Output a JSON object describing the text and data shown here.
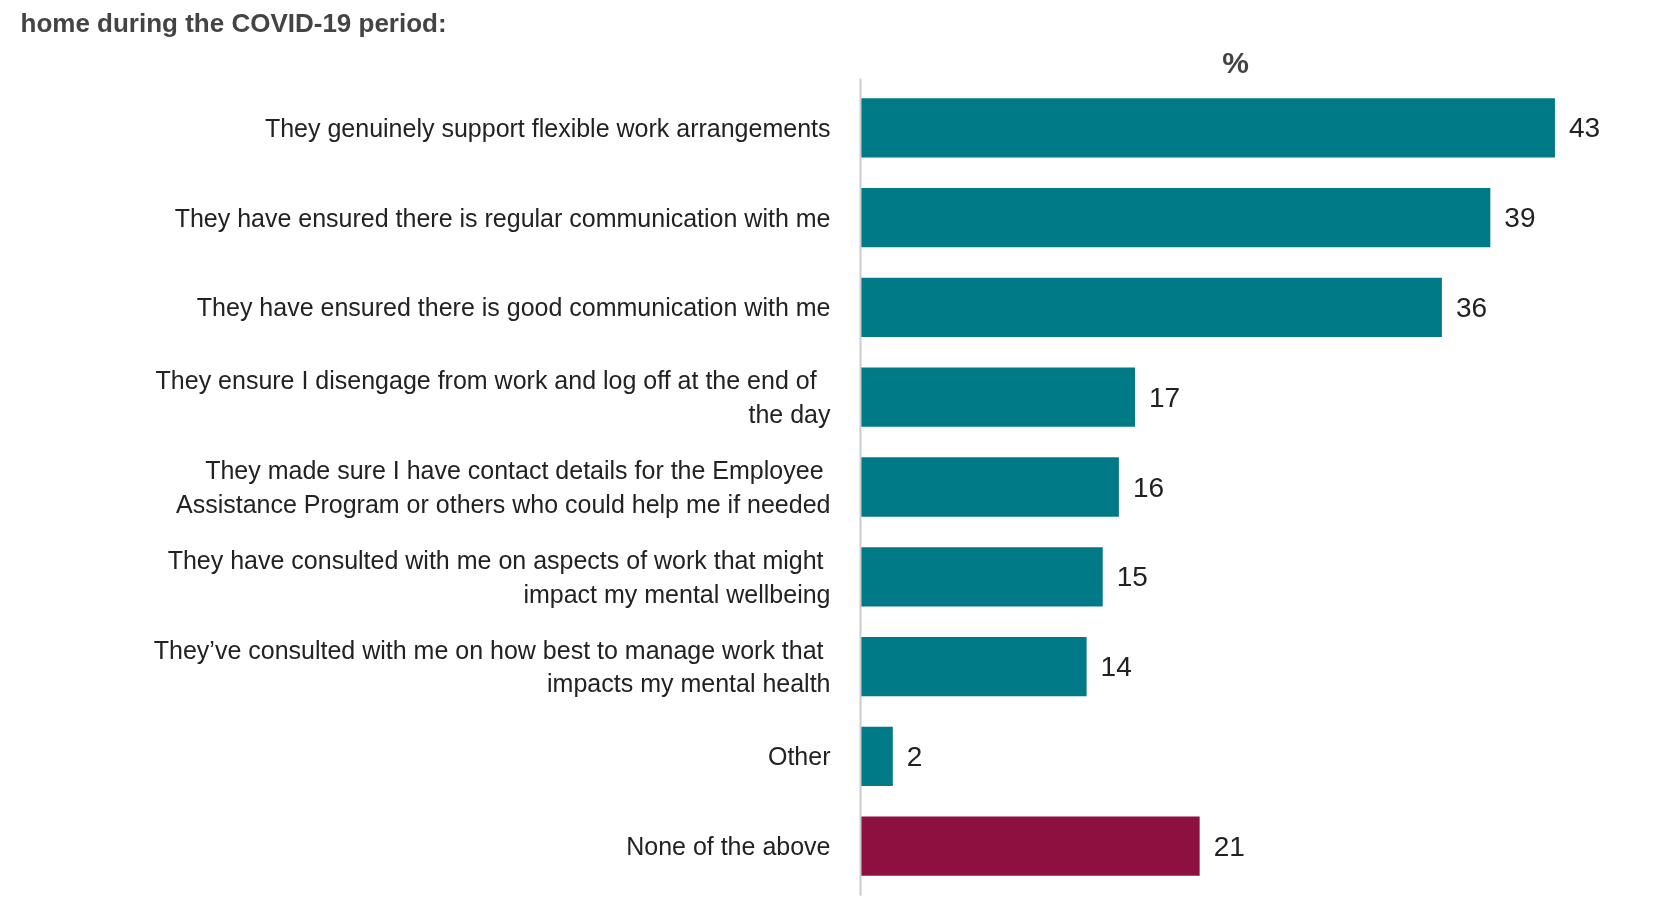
{
  "chart_data": {
    "type": "bar",
    "orientation": "horizontal",
    "title": "home during the COVID-19 period:",
    "xlabel": "%",
    "categories": [
      "They genuinely support flexible work arrangements",
      "They have ensured there is regular communication with me",
      "They have ensured there is good communication with me",
      "They ensure I  disengage from work and log off at the end of the day",
      "They made sure I have contact details for the Employee Assistance Program or others who could help me if needed",
      "They have consulted with me on aspects of work that might impact my mental wellbeing",
      "They’ve consulted with me on how best to manage work that impacts my mental health",
      "Other",
      "None of the above"
    ],
    "values": [
      43,
      39,
      36,
      17,
      16,
      15,
      14,
      2,
      21
    ],
    "colors": [
      "#007a87",
      "#007a87",
      "#007a87",
      "#007a87",
      "#007a87",
      "#007a87",
      "#007a87",
      "#007a87",
      "#8c1040"
    ],
    "data_labels": true,
    "grid": false
  }
}
